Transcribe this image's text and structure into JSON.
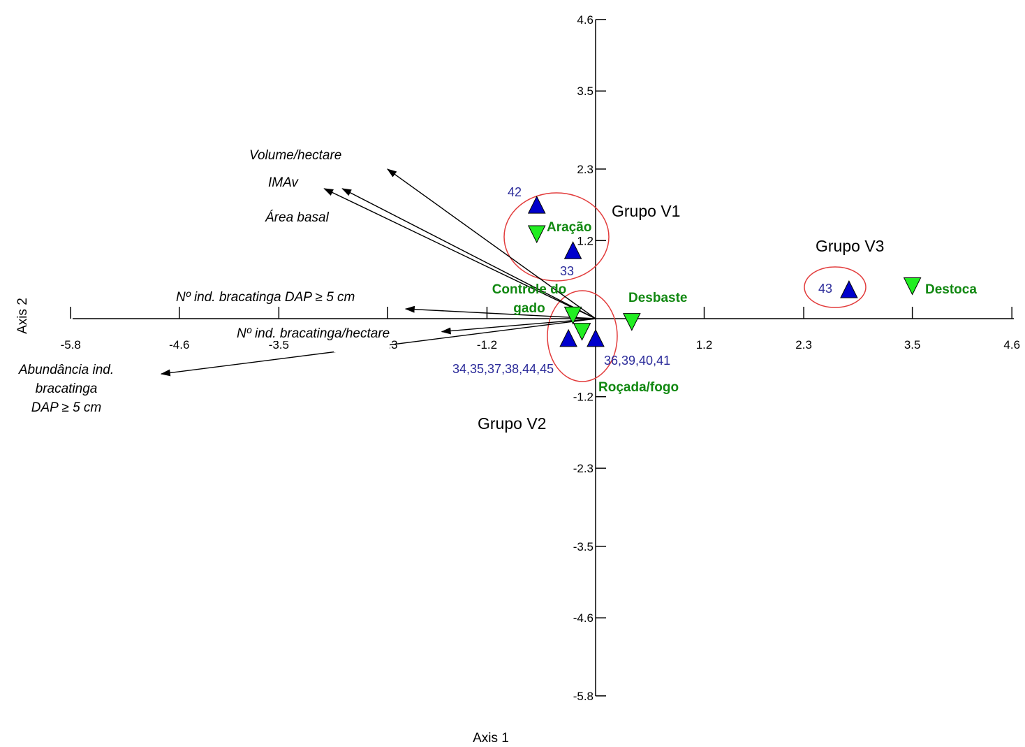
{
  "chart_data": {
    "type": "scatter",
    "title": "",
    "xlabel": "Axis 1",
    "ylabel": "Axis 2",
    "xlim": [
      -5.8,
      4.6
    ],
    "ylim": [
      -5.8,
      4.6
    ],
    "x_ticks": [
      "-5.8",
      "-4.6",
      "-3.5",
      "-2.3",
      "-1.2",
      "1.2",
      "2.3",
      "3.5",
      "4.6"
    ],
    "y_ticks": [
      "4.6",
      "3.5",
      "2.3",
      "1.2",
      "-1.2",
      "-2.3",
      "-3.5",
      "-4.6",
      "-5.8"
    ],
    "grid": false,
    "series": [
      {
        "name": "",
        "marker": "triangle-up",
        "color": "#0000cc",
        "points": [
          {
            "label": "42",
            "x": -0.65,
            "y": 1.75
          },
          {
            "label": "33",
            "x": -0.25,
            "y": 1.05
          },
          {
            "label": "43",
            "x": 2.8,
            "y": 0.45
          },
          {
            "label": "34,35,37,38,44,45",
            "x": -0.3,
            "y": -0.3
          },
          {
            "label": "36,39,40,41",
            "x": 0.0,
            "y": -0.3
          }
        ]
      },
      {
        "name": "",
        "marker": "triangle-down",
        "color": "#22ee22",
        "points": [
          {
            "label": "Aração",
            "x": -0.65,
            "y": 1.3
          },
          {
            "label": "Controle do gado",
            "x": -0.25,
            "y": 0.05
          },
          {
            "label": "",
            "x": -0.15,
            "y": -0.2
          },
          {
            "label": "Desbaste",
            "x": 0.4,
            "y": -0.05
          },
          {
            "label": "Destoca",
            "x": 3.5,
            "y": 0.5
          }
        ]
      }
    ],
    "vectors": [
      {
        "label": "Volume/hectare",
        "x": -2.3,
        "y": 2.3
      },
      {
        "label": "IMAv",
        "x": -3.0,
        "y": 2.0
      },
      {
        "label": "Área basal",
        "x": -2.8,
        "y": 2.0
      },
      {
        "label": "Nº ind. bracatinga DAP ≥ 5 cm",
        "x": -2.1,
        "y": 0.15
      },
      {
        "label": "Nº ind. bracatinga/hectare",
        "x": -1.7,
        "y": -0.2
      },
      {
        "label": "Abundância ind.\nbracatinga\nDAP ≥ 5 cm",
        "x": -4.8,
        "y": -0.85
      }
    ],
    "annotations": [
      {
        "text": "Roçada/fogo"
      },
      {
        "text": "Grupo V1"
      },
      {
        "text": "Grupo V2"
      },
      {
        "text": "Grupo V3"
      }
    ]
  }
}
